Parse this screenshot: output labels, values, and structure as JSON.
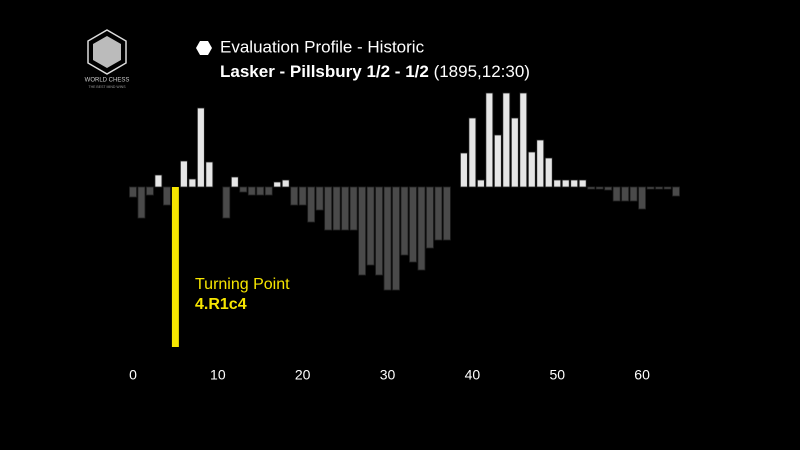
{
  "logo": {
    "name": "WORLD CHESS",
    "tagline": "THE BEST MIND WINS"
  },
  "chart_data": {
    "type": "bar",
    "title": "Evaluation Profile - Historic",
    "subtitle": "Lasker - Pillsbury 1/2 - 1/2",
    "subtitle_note": "(1895,12:30)",
    "annotation": "Turning Point",
    "annotation_move": "4.R1c4",
    "x": [
      0,
      1,
      2,
      3,
      4,
      5,
      6,
      7,
      8,
      9,
      10,
      11,
      12,
      13,
      14,
      15,
      16,
      17,
      18,
      19,
      20,
      21,
      22,
      23,
      24,
      25,
      26,
      27,
      28,
      29,
      30,
      31,
      32,
      33,
      34,
      35,
      36,
      37,
      38,
      39,
      40,
      41,
      42,
      43,
      44,
      45,
      46,
      47,
      48,
      49,
      50,
      51,
      52,
      53,
      54,
      55,
      56,
      57,
      58,
      59,
      60,
      61,
      62,
      63,
      64
    ],
    "values": [
      -1.0,
      -3.1,
      -0.8,
      1.2,
      -1.8,
      -16,
      2.6,
      0.8,
      7.9,
      2.5,
      0,
      -3.1,
      1.0,
      -0.5,
      -0.8,
      -0.8,
      -0.8,
      0.5,
      0.7,
      -1.8,
      -1.8,
      -3.5,
      -2.3,
      -4.3,
      -4.3,
      -4.3,
      -4.3,
      -8.8,
      -7.8,
      -8.8,
      -10.3,
      -10.3,
      -6.8,
      -7.5,
      -8.3,
      -6.1,
      -5.3,
      -5.3,
      0,
      3.4,
      6.9,
      0.7,
      9.4,
      5.2,
      9.4,
      6.9,
      9.4,
      3.5,
      4.7,
      2.9,
      0.7,
      0.7,
      0.7,
      0.7,
      -0.2,
      -0.2,
      -0.3,
      -1.4,
      -1.4,
      -1.4,
      -2.2,
      -0.2,
      -0.2,
      -0.2,
      -0.9
    ],
    "positive_color": "#e6e6e6",
    "negative_color": "#4a4a4a",
    "highlight_index": 5,
    "highlight_color": "#f7e600",
    "xlim": [
      -0.35,
      66
    ],
    "xticks": [
      0,
      10,
      20,
      30,
      40,
      50,
      60
    ],
    "ylim": [
      -16,
      10
    ]
  }
}
